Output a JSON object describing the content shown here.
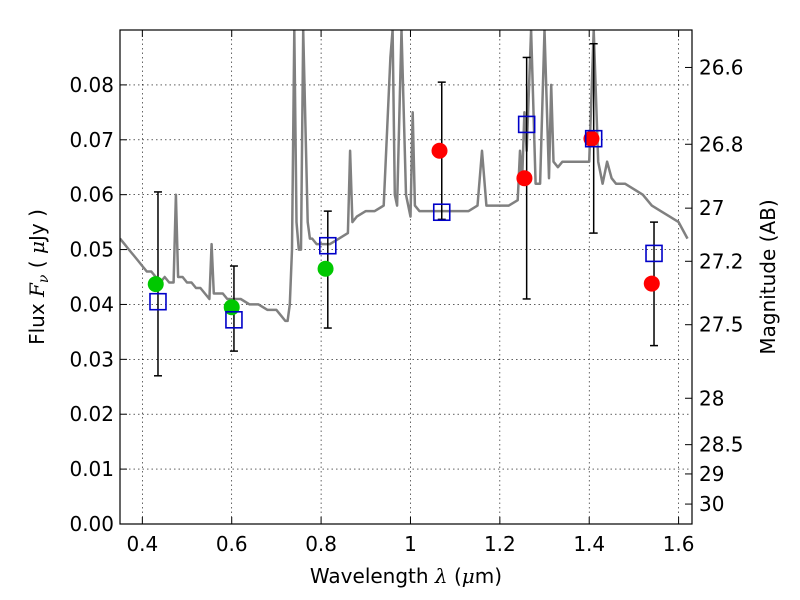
{
  "chart_data": {
    "type": "scatter",
    "xlabel_parts": [
      "Wavelength ",
      "λ",
      " (",
      "μ",
      "m)"
    ],
    "ylabel_parts": [
      "Flux ",
      "F",
      "ν",
      " ( ",
      "μ",
      "Jy )"
    ],
    "y2label": "Magnitude (AB)",
    "xlim": [
      0.35,
      1.63
    ],
    "ylim": [
      0.0,
      0.09
    ],
    "grid": true,
    "x_ticks": [
      0.4,
      0.6,
      0.8,
      1.0,
      1.2,
      1.4,
      1.6
    ],
    "x_tick_labels": [
      "0.4",
      "0.6",
      "0.8",
      "1",
      "1.2",
      "1.4",
      "1.6"
    ],
    "y_ticks": [
      0.0,
      0.01,
      0.02,
      0.03,
      0.04,
      0.05,
      0.06,
      0.07,
      0.08
    ],
    "y_tick_labels": [
      "0.00",
      "0.01",
      "0.02",
      "0.03",
      "0.04",
      "0.05",
      "0.06",
      "0.07",
      "0.08"
    ],
    "y2_tick_labels": [
      "26.6",
      "26.8",
      "27",
      "27.2",
      "27.5",
      "28",
      "28.5",
      "29",
      "30"
    ],
    "colors": {
      "spectrum": "#808080",
      "green": "#00c800",
      "red": "#ff0000",
      "model_box": "#0000c8",
      "errorbar": "#000000"
    },
    "spectrum": {
      "x": [
        0.35,
        0.36,
        0.37,
        0.38,
        0.39,
        0.4,
        0.41,
        0.42,
        0.43,
        0.44,
        0.45,
        0.46,
        0.47,
        0.475,
        0.48,
        0.49,
        0.5,
        0.51,
        0.52,
        0.53,
        0.54,
        0.55,
        0.555,
        0.56,
        0.57,
        0.58,
        0.59,
        0.6,
        0.62,
        0.64,
        0.66,
        0.68,
        0.7,
        0.71,
        0.72,
        0.725,
        0.73,
        0.735,
        0.74,
        0.745,
        0.75,
        0.755,
        0.76,
        0.77,
        0.775,
        0.78,
        0.79,
        0.8,
        0.82,
        0.84,
        0.86,
        0.865,
        0.87,
        0.88,
        0.9,
        0.92,
        0.94,
        0.955,
        0.96,
        0.965,
        0.97,
        0.98,
        0.99,
        1.0,
        1.005,
        1.01,
        1.02,
        1.03,
        1.05,
        1.07,
        1.09,
        1.11,
        1.13,
        1.15,
        1.16,
        1.17,
        1.18,
        1.2,
        1.22,
        1.24,
        1.245,
        1.25,
        1.255,
        1.26,
        1.27,
        1.28,
        1.29,
        1.3,
        1.31,
        1.315,
        1.32,
        1.33,
        1.34,
        1.35,
        1.36,
        1.37,
        1.38,
        1.39,
        1.4,
        1.41,
        1.42,
        1.43,
        1.44,
        1.45,
        1.46,
        1.48,
        1.5,
        1.52,
        1.54,
        1.56,
        1.58,
        1.6,
        1.62
      ],
      "y": [
        0.052,
        0.051,
        0.05,
        0.049,
        0.048,
        0.047,
        0.046,
        0.046,
        0.045,
        0.044,
        0.045,
        0.044,
        0.044,
        0.06,
        0.045,
        0.045,
        0.044,
        0.044,
        0.043,
        0.043,
        0.042,
        0.041,
        0.051,
        0.042,
        0.042,
        0.042,
        0.041,
        0.041,
        0.041,
        0.04,
        0.04,
        0.039,
        0.039,
        0.038,
        0.037,
        0.037,
        0.04,
        0.05,
        0.09,
        0.055,
        0.05,
        0.05,
        0.09,
        0.055,
        0.052,
        0.052,
        0.051,
        0.051,
        0.051,
        0.052,
        0.053,
        0.068,
        0.055,
        0.056,
        0.057,
        0.057,
        0.058,
        0.085,
        0.09,
        0.06,
        0.058,
        0.09,
        0.06,
        0.056,
        0.075,
        0.058,
        0.057,
        0.057,
        0.057,
        0.057,
        0.057,
        0.057,
        0.057,
        0.058,
        0.068,
        0.058,
        0.058,
        0.058,
        0.058,
        0.059,
        0.068,
        0.063,
        0.075,
        0.068,
        0.09,
        0.062,
        0.062,
        0.09,
        0.063,
        0.08,
        0.066,
        0.065,
        0.066,
        0.066,
        0.066,
        0.066,
        0.066,
        0.066,
        0.066,
        0.09,
        0.066,
        0.062,
        0.066,
        0.063,
        0.062,
        0.062,
        0.061,
        0.06,
        0.058,
        0.057,
        0.056,
        0.055,
        0.052
      ]
    },
    "green_points": [
      {
        "x": 0.43,
        "y": 0.0437
      },
      {
        "x": 0.6,
        "y": 0.0395
      },
      {
        "x": 0.81,
        "y": 0.0465
      }
    ],
    "red_points": [
      {
        "x": 1.065,
        "y": 0.068
      },
      {
        "x": 1.255,
        "y": 0.063
      },
      {
        "x": 1.405,
        "y": 0.0702
      },
      {
        "x": 1.54,
        "y": 0.0438
      }
    ],
    "model_boxes": [
      {
        "x": 0.435,
        "y": 0.0405
      },
      {
        "x": 0.605,
        "y": 0.0372
      },
      {
        "x": 0.815,
        "y": 0.0507
      },
      {
        "x": 1.07,
        "y": 0.0568
      },
      {
        "x": 1.26,
        "y": 0.0728
      },
      {
        "x": 1.41,
        "y": 0.0702
      },
      {
        "x": 1.545,
        "y": 0.0493
      }
    ],
    "errorbars": [
      {
        "x": 0.435,
        "low": 0.027,
        "high": 0.0605
      },
      {
        "x": 0.605,
        "low": 0.0315,
        "high": 0.047
      },
      {
        "x": 0.815,
        "low": 0.0357,
        "high": 0.057
      },
      {
        "x": 1.07,
        "low": 0.0555,
        "high": 0.0805
      },
      {
        "x": 1.26,
        "low": 0.041,
        "high": 0.085
      },
      {
        "x": 1.41,
        "low": 0.053,
        "high": 0.0875
      },
      {
        "x": 1.545,
        "low": 0.0325,
        "high": 0.055
      }
    ]
  }
}
